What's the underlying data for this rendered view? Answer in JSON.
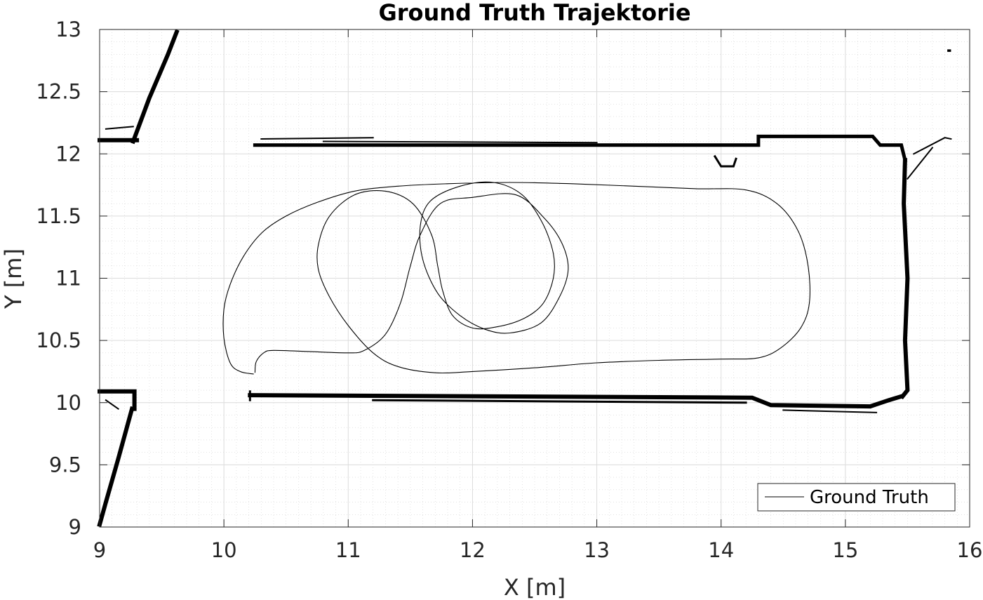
{
  "chart_data": {
    "type": "line",
    "title": "Ground Truth Trajektorie",
    "xlabel": "X [m]",
    "ylabel": "Y [m]",
    "xlim": [
      9,
      16
    ],
    "ylim": [
      9,
      13
    ],
    "xticks": [
      9,
      10,
      11,
      12,
      13,
      14,
      15,
      16
    ],
    "yticks": [
      9,
      9.5,
      10,
      10.5,
      11,
      11.5,
      12,
      12.5,
      13
    ],
    "xtick_labels": [
      "9",
      "10",
      "11",
      "12",
      "13",
      "14",
      "15",
      "16"
    ],
    "ytick_labels": [
      "9",
      "9.5",
      "10",
      "10.5",
      "11",
      "11.5",
      "12",
      "12.5",
      "13"
    ],
    "grid": true,
    "legend_position": "bottom-right",
    "line_color": "#000000",
    "map_color": "#000000",
    "series": [
      {
        "name": "Ground Truth",
        "points": [
          [
            10.24,
            10.23
          ],
          [
            10.13,
            10.25
          ],
          [
            10.05,
            10.32
          ],
          [
            10.0,
            10.52
          ],
          [
            10.0,
            10.75
          ],
          [
            10.05,
            10.95
          ],
          [
            10.16,
            11.18
          ],
          [
            10.31,
            11.37
          ],
          [
            10.5,
            11.5
          ],
          [
            10.75,
            11.61
          ],
          [
            11.05,
            11.7
          ],
          [
            11.4,
            11.74
          ],
          [
            11.8,
            11.76
          ],
          [
            12.3,
            11.77
          ],
          [
            12.8,
            11.76
          ],
          [
            13.3,
            11.74
          ],
          [
            13.8,
            11.72
          ],
          [
            14.2,
            11.71
          ],
          [
            14.45,
            11.6
          ],
          [
            14.62,
            11.38
          ],
          [
            14.7,
            11.1
          ],
          [
            14.71,
            10.8
          ],
          [
            14.64,
            10.6
          ],
          [
            14.48,
            10.44
          ],
          [
            14.3,
            10.36
          ],
          [
            14.0,
            10.35
          ],
          [
            13.5,
            10.34
          ],
          [
            13.0,
            10.32
          ],
          [
            12.5,
            10.28
          ],
          [
            12.0,
            10.25
          ],
          [
            11.7,
            10.24
          ],
          [
            11.4,
            10.29
          ],
          [
            11.2,
            10.4
          ],
          [
            11.0,
            10.62
          ],
          [
            10.85,
            10.85
          ],
          [
            10.76,
            11.07
          ],
          [
            10.76,
            11.27
          ],
          [
            10.85,
            11.5
          ],
          [
            11.05,
            11.67
          ],
          [
            11.3,
            11.7
          ],
          [
            11.52,
            11.6
          ],
          [
            11.67,
            11.35
          ],
          [
            11.72,
            11.1
          ],
          [
            11.76,
            10.9
          ],
          [
            11.84,
            10.7
          ],
          [
            12.0,
            10.6
          ],
          [
            12.2,
            10.61
          ],
          [
            12.42,
            10.68
          ],
          [
            12.57,
            10.8
          ],
          [
            12.65,
            11.0
          ],
          [
            12.65,
            11.2
          ],
          [
            12.56,
            11.45
          ],
          [
            12.4,
            11.67
          ],
          [
            12.17,
            11.77
          ],
          [
            11.9,
            11.74
          ],
          [
            11.66,
            11.62
          ],
          [
            11.58,
            11.42
          ],
          [
            11.6,
            11.15
          ],
          [
            11.72,
            10.88
          ],
          [
            11.9,
            10.7
          ],
          [
            12.1,
            10.59
          ],
          [
            12.3,
            10.56
          ],
          [
            12.55,
            10.64
          ],
          [
            12.7,
            10.85
          ],
          [
            12.77,
            11.07
          ],
          [
            12.72,
            11.28
          ],
          [
            12.58,
            11.48
          ],
          [
            12.35,
            11.67
          ],
          [
            12.0,
            11.65
          ],
          [
            11.74,
            11.6
          ],
          [
            11.58,
            11.35
          ],
          [
            11.5,
            11.1
          ],
          [
            11.42,
            10.8
          ],
          [
            11.3,
            10.55
          ],
          [
            11.13,
            10.42
          ],
          [
            11.0,
            10.4
          ],
          [
            10.7,
            10.41
          ],
          [
            10.4,
            10.42
          ],
          [
            10.32,
            10.4
          ],
          [
            10.26,
            10.33
          ],
          [
            10.25,
            10.24
          ]
        ]
      }
    ]
  }
}
